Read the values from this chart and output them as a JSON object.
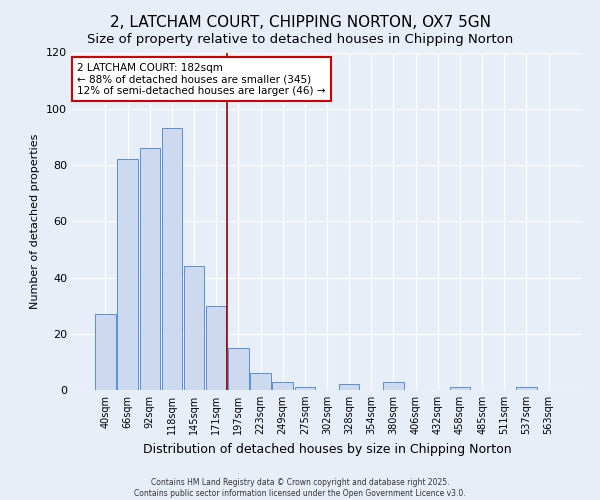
{
  "title": "2, LATCHAM COURT, CHIPPING NORTON, OX7 5GN",
  "subtitle": "Size of property relative to detached houses in Chipping Norton",
  "xlabel": "Distribution of detached houses by size in Chipping Norton",
  "ylabel": "Number of detached properties",
  "bar_labels": [
    "40sqm",
    "66sqm",
    "92sqm",
    "118sqm",
    "145sqm",
    "171sqm",
    "197sqm",
    "223sqm",
    "249sqm",
    "275sqm",
    "302sqm",
    "328sqm",
    "354sqm",
    "380sqm",
    "406sqm",
    "432sqm",
    "458sqm",
    "485sqm",
    "511sqm",
    "537sqm",
    "563sqm"
  ],
  "bar_values": [
    27,
    82,
    86,
    93,
    44,
    30,
    15,
    6,
    3,
    1,
    0,
    2,
    0,
    3,
    0,
    0,
    1,
    0,
    0,
    1,
    0
  ],
  "bar_color": "#ccd9ef",
  "bar_edge_color": "#5b8fd4",
  "ylim": [
    0,
    120
  ],
  "yticks": [
    0,
    20,
    40,
    60,
    80,
    100,
    120
  ],
  "vline_x": 5.5,
  "vline_color": "#990000",
  "annotation_title": "2 LATCHAM COURT: 182sqm",
  "annotation_line1": "← 88% of detached houses are smaller (345)",
  "annotation_line2": "12% of semi-detached houses are larger (46) →",
  "annotation_box_color": "#ffffff",
  "annotation_box_edge": "#cc0000",
  "footer1": "Contains HM Land Registry data © Crown copyright and database right 2025.",
  "footer2": "Contains public sector information licensed under the Open Government Licence v3.0.",
  "bg_color": "#e8eef8",
  "grid_color": "#ffffff",
  "title_fontsize": 11,
  "subtitle_fontsize": 9.5,
  "ylabel_fontsize": 8,
  "xlabel_fontsize": 9
}
